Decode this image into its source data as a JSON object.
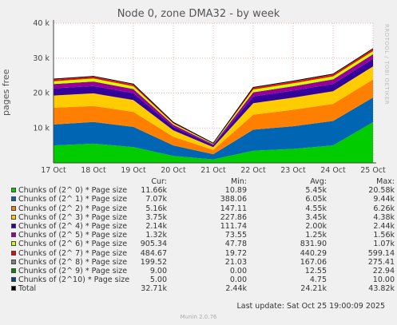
{
  "title": "Node 0, zone DMA32 - by week",
  "watermark": "RRDTOOL / TOBI OETIKER",
  "footer": "Munin 2.0.76",
  "last_update": "Last update: Sat Oct 25 19:00:09 2025",
  "legend_headers": {
    "cur": "Cur:",
    "min": "Min:",
    "avg": "Avg:",
    "max": "Max:"
  },
  "legend": [
    {
      "name": "Chunks of (2^ 0) * Page size",
      "color": "#00cc00",
      "cur": "11.66k",
      "min": "10.89",
      "avg": "5.45k",
      "max": "20.58k"
    },
    {
      "name": "Chunks of (2^ 1) * Page size",
      "color": "#0066b3",
      "cur": "7.07k",
      "min": "388.06",
      "avg": "6.05k",
      "max": "9.44k"
    },
    {
      "name": "Chunks of (2^ 2) * Page size",
      "color": "#ff8000",
      "cur": "5.16k",
      "min": "147.11",
      "avg": "4.55k",
      "max": "6.26k"
    },
    {
      "name": "Chunks of (2^ 3) * Page size",
      "color": "#ffcc00",
      "cur": "3.75k",
      "min": "227.86",
      "avg": "3.45k",
      "max": "4.38k"
    },
    {
      "name": "Chunks of (2^ 4) * Page size",
      "color": "#330099",
      "cur": "2.14k",
      "min": "111.74",
      "avg": "2.00k",
      "max": "2.44k"
    },
    {
      "name": "Chunks of (2^ 5) * Page size",
      "color": "#990099",
      "cur": "1.32k",
      "min": "73.55",
      "avg": "1.25k",
      "max": "1.56k"
    },
    {
      "name": "Chunks of (2^ 6) * Page size",
      "color": "#ccff00",
      "cur": "905.34",
      "min": "47.78",
      "avg": "831.90",
      "max": "1.07k"
    },
    {
      "name": "Chunks of (2^ 7) * Page size",
      "color": "#ff0000",
      "cur": "484.67",
      "min": "19.72",
      "avg": "440.29",
      "max": "599.14"
    },
    {
      "name": "Chunks of (2^ 8) * Page size",
      "color": "#808080",
      "cur": "199.52",
      "min": "21.03",
      "avg": "167.06",
      "max": "275.41"
    },
    {
      "name": "Chunks of (2^ 9) * Page size",
      "color": "#008f00",
      "cur": "9.00",
      "min": "0.00",
      "avg": "12.55",
      "max": "22.94"
    },
    {
      "name": "Chunks of (2^10) * Page size",
      "color": "#00487d",
      "cur": "5.00",
      "min": "0.00",
      "avg": "4.75",
      "max": "10.00"
    },
    {
      "name": "Total",
      "color": "#000000",
      "cur": "32.71k",
      "min": "2.44k",
      "avg": "24.21k",
      "max": "43.82k"
    }
  ],
  "chart_data": {
    "type": "area",
    "title": "Node 0, zone DMA32 - by week",
    "ylabel": "pages free",
    "ylim": [
      0,
      40000
    ],
    "yticks": [
      0,
      10000,
      20000,
      30000,
      40000
    ],
    "ytick_labels": [
      "",
      "10 k",
      "20 k",
      "30 k",
      "40 k"
    ],
    "x_tick_labels": [
      "17 Oct",
      "18 Oct",
      "19 Oct",
      "20 Oct",
      "21 Oct",
      "22 Oct",
      "23 Oct",
      "24 Oct",
      "25 Oct"
    ],
    "grid": true,
    "x": [
      "17 Oct",
      "18 Oct",
      "19 Oct",
      "20 Oct",
      "21 Oct",
      "22 Oct",
      "23 Oct",
      "24 Oct",
      "25 Oct"
    ],
    "series": [
      {
        "name": "Chunks of (2^ 0) * Page size",
        "color": "#00cc00",
        "values": [
          5000,
          5500,
          4500,
          2000,
          1000,
          3500,
          4000,
          5000,
          11660
        ]
      },
      {
        "name": "Chunks of (2^ 1) * Page size",
        "color": "#0066b3",
        "values": [
          6000,
          6200,
          5800,
          3000,
          1500,
          6000,
          6500,
          7000,
          7070
        ]
      },
      {
        "name": "Chunks of (2^ 2) * Page size",
        "color": "#ff8000",
        "values": [
          4800,
          4600,
          4300,
          2500,
          1200,
          4300,
          4700,
          4900,
          5160
        ]
      },
      {
        "name": "Chunks of (2^ 3) * Page size",
        "color": "#ffcc00",
        "values": [
          3500,
          3600,
          3400,
          1800,
          800,
          3300,
          3500,
          3600,
          3750
        ]
      },
      {
        "name": "Chunks of (2^ 4) * Page size",
        "color": "#330099",
        "values": [
          2000,
          2100,
          1950,
          1000,
          500,
          1900,
          2000,
          2100,
          2140
        ]
      },
      {
        "name": "Chunks of (2^ 5) * Page size",
        "color": "#990099",
        "values": [
          1250,
          1300,
          1200,
          600,
          300,
          1200,
          1250,
          1300,
          1320
        ]
      },
      {
        "name": "Chunks of (2^ 6) * Page size",
        "color": "#ccff00",
        "values": [
          830,
          850,
          800,
          400,
          200,
          800,
          840,
          870,
          905
        ]
      },
      {
        "name": "Chunks of (2^ 7) * Page size",
        "color": "#ff0000",
        "values": [
          440,
          450,
          430,
          220,
          100,
          420,
          440,
          460,
          485
        ]
      },
      {
        "name": "Chunks of (2^ 8) * Page size",
        "color": "#808080",
        "values": [
          165,
          170,
          160,
          80,
          40,
          160,
          170,
          175,
          200
        ]
      },
      {
        "name": "Chunks of (2^ 9) * Page size",
        "color": "#008f00",
        "values": [
          12,
          13,
          12,
          6,
          3,
          12,
          13,
          13,
          9
        ]
      },
      {
        "name": "Chunks of (2^10) * Page size",
        "color": "#00487d",
        "values": [
          5,
          5,
          5,
          2,
          1,
          5,
          5,
          5,
          5
        ]
      }
    ]
  }
}
